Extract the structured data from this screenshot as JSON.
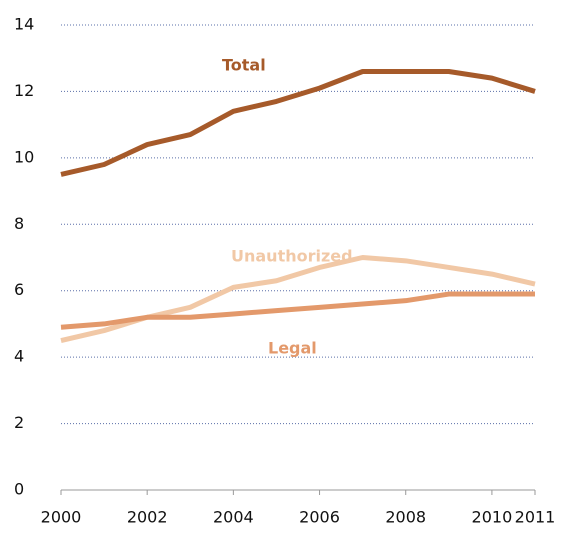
{
  "chart_data": {
    "type": "line",
    "x": [
      2000,
      2001,
      2002,
      2003,
      2004,
      2005,
      2006,
      2007,
      2008,
      2009,
      2010,
      2011
    ],
    "series": [
      {
        "name": "Total",
        "color": "#a65a2a",
        "values": [
          9.5,
          9.8,
          10.4,
          10.7,
          11.4,
          11.7,
          12.1,
          12.6,
          12.6,
          12.6,
          12.4,
          12.0
        ]
      },
      {
        "name": "Unauthorized",
        "color": "#f1c8a6",
        "values": [
          4.5,
          4.8,
          5.2,
          5.5,
          6.1,
          6.3,
          6.7,
          7.0,
          6.9,
          6.7,
          6.5,
          6.2
        ]
      },
      {
        "name": "Legal",
        "color": "#e3996b",
        "values": [
          4.9,
          5.0,
          5.2,
          5.2,
          5.3,
          5.4,
          5.5,
          5.6,
          5.7,
          5.9,
          5.9,
          5.9
        ]
      }
    ],
    "xlim": [
      2000,
      2011
    ],
    "xticks": [
      2000,
      2002,
      2004,
      2006,
      2008,
      2010,
      2011
    ],
    "ylim": [
      0,
      14
    ],
    "yticks": [
      0,
      2,
      4,
      6,
      8,
      10,
      12,
      14
    ],
    "grid": true
  }
}
